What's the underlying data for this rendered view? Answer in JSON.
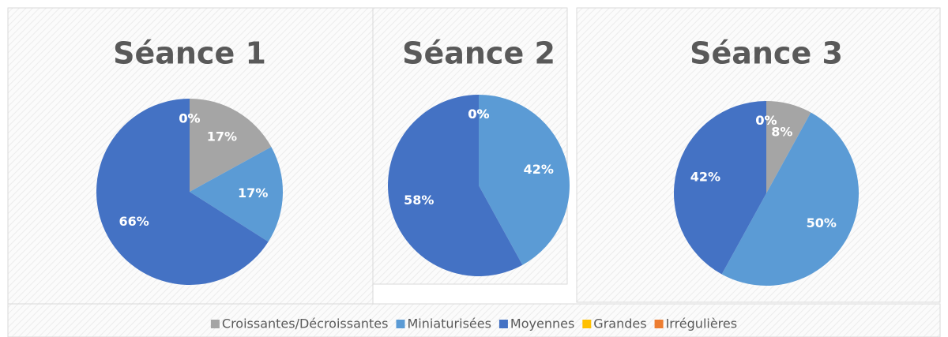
{
  "chart_data": [
    {
      "type": "pie",
      "title": "Séance 1",
      "categories": [
        "Croissantes/Décroissantes",
        "Miniaturisées",
        "Moyennes",
        "Grandes",
        "Irrégulières"
      ],
      "values": [
        17,
        17,
        66,
        0,
        0
      ],
      "value_labels": [
        "17%",
        "17%",
        "66%",
        "0%",
        "0%"
      ],
      "colors": [
        "#a5a5a5",
        "#5b9bd5",
        "#4472c4",
        "#ffc000",
        "#ed7d31"
      ]
    },
    {
      "type": "pie",
      "title": "Séance 2",
      "categories": [
        "Croissantes/Décroissantes",
        "Miniaturisées",
        "Moyennes",
        "Grandes",
        "Irrégulières"
      ],
      "values": [
        0,
        42,
        58,
        0,
        0
      ],
      "value_labels": [
        "0%",
        "42%",
        "58%",
        "0%",
        "0%"
      ],
      "colors": [
        "#a5a5a5",
        "#5b9bd5",
        "#4472c4",
        "#ffc000",
        "#ed7d31"
      ]
    },
    {
      "type": "pie",
      "title": "Séance 3",
      "categories": [
        "Croissantes/Décroissantes",
        "Miniaturisées",
        "Moyennes",
        "Grandes",
        "Irrégulières"
      ],
      "values": [
        8,
        50,
        42,
        0,
        0
      ],
      "value_labels": [
        "8%",
        "50%",
        "42%",
        "0%",
        "0%"
      ],
      "colors": [
        "#a5a5a5",
        "#5b9bd5",
        "#4472c4",
        "#ffc000",
        "#ed7d31"
      ]
    }
  ]
}
